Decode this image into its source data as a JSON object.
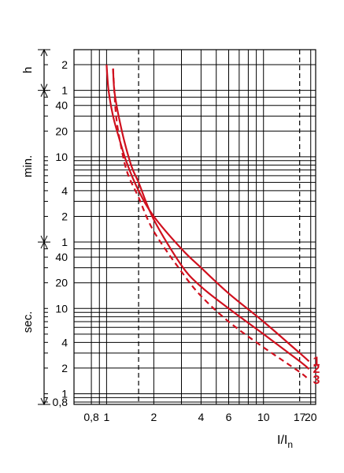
{
  "chart_data": {
    "type": "line",
    "x_scale": "log",
    "y_scale": "log",
    "xlabel": "I/I",
    "xlabel_subscript": "n",
    "x_tick_labels": [
      {
        "x": 0.8,
        "label": "0,8"
      },
      {
        "x": 1,
        "label": "1"
      },
      {
        "x": 2,
        "label": "2"
      },
      {
        "x": 4,
        "label": "4"
      },
      {
        "x": 6,
        "label": "6"
      },
      {
        "x": 10,
        "label": "10"
      },
      {
        "x": 17,
        "label": "17"
      },
      {
        "x": 20,
        "label": "20"
      }
    ],
    "x_gridlines": [
      0.8,
      0.9,
      1,
      2,
      3,
      4,
      5,
      6,
      7,
      8,
      9,
      10,
      20
    ],
    "dashed_verticals": [
      1.6,
      17
    ],
    "y_sections": [
      {
        "label": "sec.",
        "from_s": 0.8,
        "to_s": 60,
        "ticks": [
          {
            "s": 0.8,
            "label": "0,8"
          },
          {
            "s": 1,
            "label": "1"
          },
          {
            "s": 2,
            "label": "2"
          },
          {
            "s": 4,
            "label": "4"
          },
          {
            "s": 10,
            "label": "10"
          },
          {
            "s": 20,
            "label": "20"
          },
          {
            "s": 40,
            "label": "40"
          }
        ]
      },
      {
        "label": "min.",
        "from_s": 60,
        "to_s": 3600,
        "ticks": [
          {
            "s": 60,
            "label": "1"
          },
          {
            "s": 120,
            "label": "2"
          },
          {
            "s": 240,
            "label": "4"
          },
          {
            "s": 600,
            "label": "10"
          },
          {
            "s": 1200,
            "label": "20"
          },
          {
            "s": 2400,
            "label": "40"
          }
        ]
      },
      {
        "label": "h",
        "from_s": 3600,
        "to_s": 10800,
        "ticks": [
          {
            "s": 3600,
            "label": "1"
          },
          {
            "s": 7200,
            "label": "2"
          }
        ]
      }
    ],
    "y_gridlines_s": [
      0.8,
      0.9,
      1,
      2,
      3,
      4,
      5,
      6,
      7,
      8,
      9,
      10,
      20,
      30,
      40,
      50,
      60,
      120,
      180,
      240,
      300,
      360,
      420,
      480,
      540,
      600,
      1200,
      1800,
      2400,
      3000,
      3600,
      7200
    ],
    "xlim": [
      0.62,
      21.5
    ],
    "ylim_s": [
      0.75,
      10800
    ],
    "series": [
      {
        "name": "1",
        "style": "solid",
        "color": "#d0101e",
        "points": [
          [
            1.0,
            7200
          ],
          [
            1.03,
            3600
          ],
          [
            1.1,
            1800
          ],
          [
            1.2,
            1000
          ],
          [
            1.35,
            500
          ],
          [
            1.6,
            240
          ],
          [
            2.0,
            120
          ],
          [
            3.0,
            50
          ],
          [
            4.0,
            30
          ],
          [
            6.0,
            15
          ],
          [
            10.0,
            7
          ],
          [
            17.0,
            3
          ],
          [
            19.5,
            2.4
          ]
        ]
      },
      {
        "name": "2",
        "style": "solid",
        "color": "#d0101e",
        "points": [
          [
            1.1,
            6500
          ],
          [
            1.12,
            3600
          ],
          [
            1.18,
            2000
          ],
          [
            1.3,
            900
          ],
          [
            1.45,
            450
          ],
          [
            1.6,
            300
          ],
          [
            2.0,
            110
          ],
          [
            3.0,
            32
          ],
          [
            4.0,
            18
          ],
          [
            6.0,
            10
          ],
          [
            10.0,
            5
          ],
          [
            17.0,
            2.4
          ],
          [
            19.5,
            1.95
          ]
        ]
      },
      {
        "name": "3",
        "style": "dashed",
        "color": "#d0101e",
        "points": [
          [
            1.1,
            6500
          ],
          [
            1.12,
            3600
          ],
          [
            1.15,
            1800
          ],
          [
            1.22,
            900
          ],
          [
            1.35,
            400
          ],
          [
            1.6,
            200
          ],
          [
            2.0,
            80
          ],
          [
            3.0,
            27
          ],
          [
            4.0,
            14
          ],
          [
            6.0,
            7
          ],
          [
            10.0,
            3.5
          ],
          [
            17.0,
            1.8
          ],
          [
            19.5,
            1.45
          ]
        ]
      }
    ]
  }
}
